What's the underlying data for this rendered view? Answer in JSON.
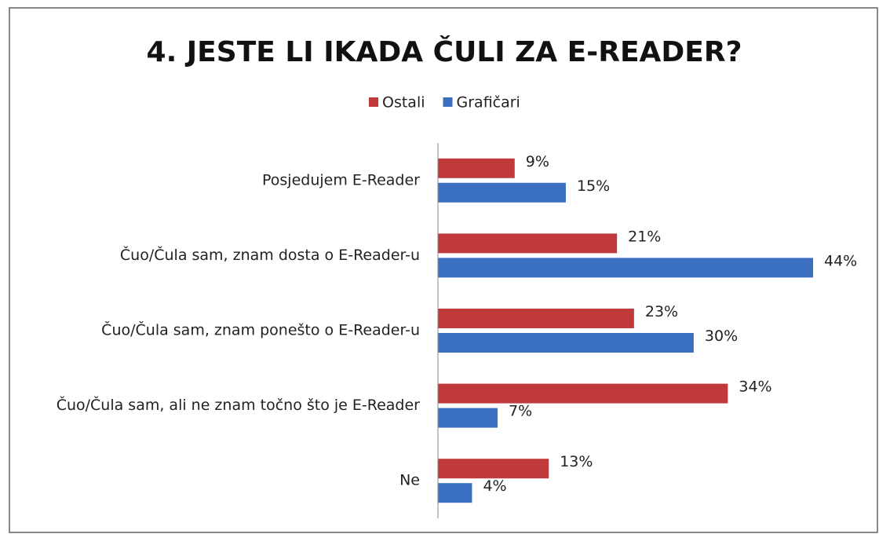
{
  "chart_data": {
    "type": "hbar",
    "title": "4. JESTE LI IKADA ČULI ZA E-READER?",
    "categories": [
      "Posjedujem E-Reader",
      "Čuo/Čula sam, znam dosta o E-Reader-u",
      "Čuo/Čula sam, znam ponešto o E-Reader-u",
      "Čuo/Čula sam, ali ne znam točno što je E-Reader",
      "Ne"
    ],
    "series": [
      {
        "name": "Ostali",
        "color": "#c0393b",
        "values": [
          9,
          21,
          23,
          34,
          13
        ],
        "value_labels": [
          "9%",
          "21%",
          "23%",
          "34%",
          "13%"
        ]
      },
      {
        "name": "Grafičari",
        "color": "#3b6fc0",
        "values": [
          15,
          44,
          30,
          7,
          4
        ],
        "value_labels": [
          "15%",
          "44%",
          "30%",
          "7%",
          "4%"
        ]
      }
    ],
    "legend": "top"
  }
}
